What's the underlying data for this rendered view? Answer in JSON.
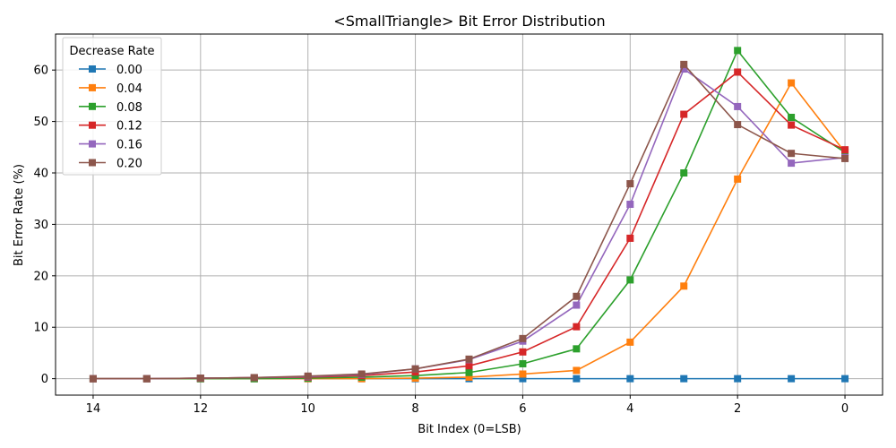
{
  "chart_data": {
    "type": "line",
    "title": "<SmallTriangle> Bit Error Distribution",
    "xlabel": "Bit Index (0=LSB)",
    "ylabel": "Bit Error Rate (%)",
    "x": [
      14,
      13,
      12,
      11,
      10,
      9,
      8,
      7,
      6,
      5,
      4,
      3,
      2,
      1,
      0
    ],
    "x_inverted": true,
    "xlim": [
      14.7,
      -0.7
    ],
    "ylim": [
      -3.2,
      67
    ],
    "xticks": [
      "14",
      "12",
      "10",
      "8",
      "6",
      "4",
      "2",
      "0"
    ],
    "yticks": [
      "0",
      "10",
      "20",
      "30",
      "40",
      "50",
      "60"
    ],
    "grid": true,
    "marker": "square",
    "legend": {
      "title": "Decrease Rate",
      "placement": "top-left"
    },
    "series": [
      {
        "name": "0.00",
        "color": "#1f77b4",
        "values": [
          0,
          0,
          0,
          0,
          0,
          0,
          0,
          0,
          0,
          0,
          0,
          0,
          0,
          0,
          0
        ]
      },
      {
        "name": "0.04",
        "color": "#ff7f0e",
        "values": [
          0,
          0,
          0,
          0,
          0,
          0,
          0.1,
          0.3,
          0.9,
          1.6,
          7.1,
          18.0,
          38.8,
          57.5,
          44.0
        ]
      },
      {
        "name": "0.08",
        "color": "#2ca02c",
        "values": [
          0,
          0,
          0,
          0,
          0.1,
          0.3,
          0.6,
          1.2,
          2.9,
          5.8,
          19.2,
          40.0,
          63.8,
          50.8,
          44.0
        ]
      },
      {
        "name": "0.12",
        "color": "#d62728",
        "values": [
          0,
          0,
          0.1,
          0.2,
          0.3,
          0.6,
          1.3,
          2.5,
          5.2,
          10.1,
          27.3,
          51.4,
          59.6,
          49.3,
          44.5
        ]
      },
      {
        "name": "0.16",
        "color": "#9467bd",
        "values": [
          0,
          0,
          0.1,
          0.2,
          0.4,
          0.8,
          1.9,
          3.7,
          7.3,
          14.3,
          33.9,
          60.2,
          52.9,
          41.9,
          43.0
        ]
      },
      {
        "name": "0.20",
        "color": "#8c564b",
        "values": [
          0,
          0,
          0.1,
          0.2,
          0.5,
          0.9,
          1.9,
          3.8,
          7.8,
          16.0,
          37.9,
          61.1,
          49.4,
          43.8,
          42.8
        ]
      }
    ]
  }
}
